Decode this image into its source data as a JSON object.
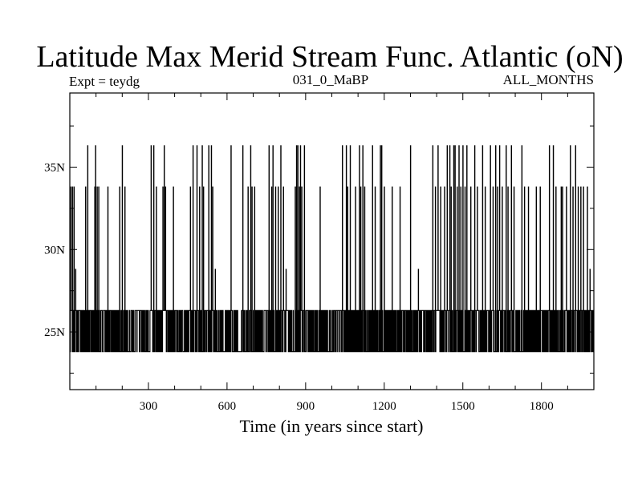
{
  "chart_data": {
    "type": "line",
    "title": "Latitude Max Merid Stream Func. Atlantic (oN)",
    "subtitle_left": "Expt = teydg",
    "subtitle_center": "031_0_MaBP",
    "subtitle_right": "ALL_MONTHS",
    "xlabel": "Time (in years since start)",
    "ylabel": "",
    "xlim": [
      0,
      2000
    ],
    "ylim": [
      21.5,
      39.5
    ],
    "x_ticks": [
      300,
      600,
      900,
      1200,
      1500,
      1800
    ],
    "x_tick_labels": [
      "300",
      "600",
      "900",
      "1200",
      "1500",
      "1800"
    ],
    "y_ticks": [
      25,
      30,
      35
    ],
    "y_tick_labels": [
      "25N",
      "30N",
      "35N"
    ],
    "levels": [
      23.8,
      26.3,
      28.8,
      33.8,
      36.3
    ],
    "series": [
      {
        "color": "#000000",
        "baseline_levels": [
          23.8,
          26.3
        ],
        "excursions": [
          {
            "x": 4,
            "y": 33.8
          },
          {
            "x": 10,
            "y": 33.8
          },
          {
            "x": 16,
            "y": 33.8
          },
          {
            "x": 22,
            "y": 28.8
          },
          {
            "x": 60,
            "y": 33.8
          },
          {
            "x": 68,
            "y": 36.3
          },
          {
            "x": 95,
            "y": 33.8
          },
          {
            "x": 98,
            "y": 36.3
          },
          {
            "x": 104,
            "y": 33.8
          },
          {
            "x": 110,
            "y": 33.8
          },
          {
            "x": 145,
            "y": 33.8
          },
          {
            "x": 190,
            "y": 33.8
          },
          {
            "x": 200,
            "y": 36.3
          },
          {
            "x": 210,
            "y": 33.8
          },
          {
            "x": 310,
            "y": 36.3
          },
          {
            "x": 320,
            "y": 36.3
          },
          {
            "x": 330,
            "y": 33.8
          },
          {
            "x": 355,
            "y": 33.8
          },
          {
            "x": 360,
            "y": 36.3
          },
          {
            "x": 365,
            "y": 33.8
          },
          {
            "x": 395,
            "y": 33.8
          },
          {
            "x": 460,
            "y": 33.8
          },
          {
            "x": 470,
            "y": 36.3
          },
          {
            "x": 485,
            "y": 36.3
          },
          {
            "x": 495,
            "y": 33.8
          },
          {
            "x": 505,
            "y": 36.3
          },
          {
            "x": 510,
            "y": 33.8
          },
          {
            "x": 530,
            "y": 36.3
          },
          {
            "x": 540,
            "y": 36.3
          },
          {
            "x": 545,
            "y": 33.8
          },
          {
            "x": 555,
            "y": 28.8
          },
          {
            "x": 615,
            "y": 36.3
          },
          {
            "x": 660,
            "y": 36.3
          },
          {
            "x": 680,
            "y": 33.8
          },
          {
            "x": 690,
            "y": 36.3
          },
          {
            "x": 695,
            "y": 33.8
          },
          {
            "x": 705,
            "y": 33.8
          },
          {
            "x": 760,
            "y": 36.3
          },
          {
            "x": 770,
            "y": 33.8
          },
          {
            "x": 775,
            "y": 36.3
          },
          {
            "x": 785,
            "y": 33.8
          },
          {
            "x": 795,
            "y": 33.8
          },
          {
            "x": 805,
            "y": 36.3
          },
          {
            "x": 815,
            "y": 33.8
          },
          {
            "x": 825,
            "y": 28.8
          },
          {
            "x": 860,
            "y": 33.8
          },
          {
            "x": 865,
            "y": 36.3
          },
          {
            "x": 870,
            "y": 36.3
          },
          {
            "x": 876,
            "y": 33.8
          },
          {
            "x": 880,
            "y": 36.3
          },
          {
            "x": 885,
            "y": 33.8
          },
          {
            "x": 895,
            "y": 36.3
          },
          {
            "x": 955,
            "y": 33.8
          },
          {
            "x": 1040,
            "y": 36.3
          },
          {
            "x": 1055,
            "y": 36.3
          },
          {
            "x": 1060,
            "y": 33.8
          },
          {
            "x": 1070,
            "y": 36.3
          },
          {
            "x": 1090,
            "y": 33.8
          },
          {
            "x": 1105,
            "y": 36.3
          },
          {
            "x": 1110,
            "y": 33.8
          },
          {
            "x": 1118,
            "y": 36.3
          },
          {
            "x": 1125,
            "y": 33.8
          },
          {
            "x": 1155,
            "y": 36.3
          },
          {
            "x": 1165,
            "y": 33.8
          },
          {
            "x": 1185,
            "y": 36.3
          },
          {
            "x": 1190,
            "y": 36.3
          },
          {
            "x": 1200,
            "y": 33.8
          },
          {
            "x": 1230,
            "y": 33.8
          },
          {
            "x": 1260,
            "y": 33.8
          },
          {
            "x": 1300,
            "y": 36.3
          },
          {
            "x": 1330,
            "y": 28.8
          },
          {
            "x": 1385,
            "y": 36.3
          },
          {
            "x": 1395,
            "y": 33.8
          },
          {
            "x": 1405,
            "y": 36.3
          },
          {
            "x": 1415,
            "y": 33.8
          },
          {
            "x": 1430,
            "y": 33.8
          },
          {
            "x": 1440,
            "y": 36.3
          },
          {
            "x": 1450,
            "y": 36.3
          },
          {
            "x": 1455,
            "y": 33.8
          },
          {
            "x": 1465,
            "y": 36.3
          },
          {
            "x": 1470,
            "y": 36.3
          },
          {
            "x": 1478,
            "y": 33.8
          },
          {
            "x": 1485,
            "y": 36.3
          },
          {
            "x": 1492,
            "y": 33.8
          },
          {
            "x": 1500,
            "y": 36.3
          },
          {
            "x": 1508,
            "y": 33.8
          },
          {
            "x": 1515,
            "y": 36.3
          },
          {
            "x": 1530,
            "y": 33.8
          },
          {
            "x": 1545,
            "y": 36.3
          },
          {
            "x": 1555,
            "y": 33.8
          },
          {
            "x": 1575,
            "y": 36.3
          },
          {
            "x": 1585,
            "y": 33.8
          },
          {
            "x": 1605,
            "y": 36.3
          },
          {
            "x": 1615,
            "y": 33.8
          },
          {
            "x": 1625,
            "y": 36.3
          },
          {
            "x": 1632,
            "y": 33.8
          },
          {
            "x": 1640,
            "y": 36.3
          },
          {
            "x": 1650,
            "y": 33.8
          },
          {
            "x": 1665,
            "y": 36.3
          },
          {
            "x": 1672,
            "y": 33.8
          },
          {
            "x": 1685,
            "y": 36.3
          },
          {
            "x": 1695,
            "y": 33.8
          },
          {
            "x": 1725,
            "y": 36.3
          },
          {
            "x": 1735,
            "y": 33.8
          },
          {
            "x": 1750,
            "y": 33.8
          },
          {
            "x": 1780,
            "y": 33.8
          },
          {
            "x": 1795,
            "y": 33.8
          },
          {
            "x": 1830,
            "y": 36.3
          },
          {
            "x": 1845,
            "y": 36.3
          },
          {
            "x": 1855,
            "y": 33.8
          },
          {
            "x": 1875,
            "y": 33.8
          },
          {
            "x": 1880,
            "y": 33.8
          },
          {
            "x": 1895,
            "y": 33.8
          },
          {
            "x": 1910,
            "y": 36.3
          },
          {
            "x": 1920,
            "y": 33.8
          },
          {
            "x": 1930,
            "y": 36.3
          },
          {
            "x": 1940,
            "y": 33.8
          },
          {
            "x": 1950,
            "y": 33.8
          },
          {
            "x": 1960,
            "y": 33.8
          },
          {
            "x": 1975,
            "y": 33.8
          },
          {
            "x": 1985,
            "y": 28.8
          }
        ]
      }
    ]
  }
}
